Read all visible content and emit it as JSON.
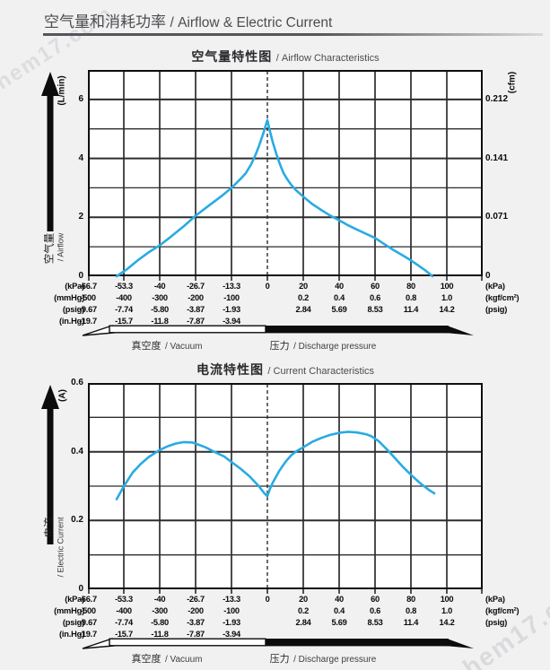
{
  "page": {
    "header": {
      "title_zh": "空气量和消耗功率",
      "title_en": "/ Airflow & Electric Current"
    },
    "watermark": "chem17.com"
  },
  "colors": {
    "background": "#f1f1f2",
    "plot_background": "#ffffff",
    "grid": "#2d2d2f",
    "border": "#0f0f10",
    "curve": "#29abe2",
    "arrow": "#0c0c0c"
  },
  "x_axis_shared": {
    "divisions_kpa": [
      -66.7,
      -53.3,
      -40,
      -26.7,
      -13.3,
      0,
      20,
      40,
      60,
      80,
      100
    ],
    "rows": [
      {
        "unit_left": "(kPa)",
        "unit_right": "(kPa)",
        "cells": [
          "-66.7",
          "-53.3",
          "-40",
          "-26.7",
          "-13.3",
          "0",
          "20",
          "40",
          "60",
          "80",
          "100"
        ]
      },
      {
        "unit_left": "(mmHg)",
        "unit_right": "(kgf/cm²)",
        "cells": [
          "-500",
          "-400",
          "-300",
          "-200",
          "-100",
          null,
          "0.2",
          "0.4",
          "0.6",
          "0.8",
          "1.0"
        ]
      },
      {
        "unit_left": "(psig)",
        "unit_right": "(psig)",
        "cells": [
          "-9.67",
          "-7.74",
          "-5.80",
          "-3.87",
          "-1.93",
          null,
          "2.84",
          "5.69",
          "8.53",
          "11.4",
          "14.2"
        ]
      },
      {
        "unit_left": "(in.Hg)",
        "unit_right": null,
        "cells": [
          "-19.7",
          "-15.7",
          "-11.8",
          "-7.87",
          "-3.94",
          null,
          null,
          null,
          null,
          null,
          null
        ]
      }
    ],
    "range_bar": {
      "vacuum_zh": "真空度",
      "vacuum_en": "/ Vacuum",
      "pressure_zh": "压力",
      "pressure_en": "/ Discharge pressure"
    }
  },
  "chart_data": [
    {
      "type": "line",
      "title_zh": "空气量特性图",
      "title_en": "/ Airflow Characteristics",
      "x_axis": {
        "unit": "kPa",
        "plot_range_kpa": [
          -66.7,
          120
        ],
        "scale": "dual-linear: 13.33 kPa per division on vacuum side, 20 kPa per division on pressure side",
        "zero_line": "dashed",
        "grid": "on"
      },
      "y_left": {
        "name_zh": "空气量",
        "name_en": "/ Airflow",
        "unit": "(L/min)",
        "ylim": [
          0,
          7
        ],
        "minor_step": 1,
        "ticks": [
          {
            "v": 0,
            "label": "0"
          },
          {
            "v": 2,
            "label": "2"
          },
          {
            "v": 4,
            "label": "4"
          },
          {
            "v": 6,
            "label": "6"
          }
        ]
      },
      "y_right": {
        "unit": "(cfm)",
        "ticks": [
          {
            "v": 0,
            "label": "0"
          },
          {
            "v": 2,
            "label": "0.071"
          },
          {
            "v": 4,
            "label": "0.141"
          },
          {
            "v": 6,
            "label": "0.212"
          }
        ]
      },
      "series": [
        {
          "name": "airflow",
          "x_unit": "kPa",
          "y_unit": "L/min",
          "points": [
            [
              -56,
              0
            ],
            [
              -52,
              0.25
            ],
            [
              -48,
              0.55
            ],
            [
              -44,
              0.82
            ],
            [
              -40,
              1.05
            ],
            [
              -36,
              1.33
            ],
            [
              -31,
              1.7
            ],
            [
              -26.7,
              2.05
            ],
            [
              -22,
              2.38
            ],
            [
              -17,
              2.72
            ],
            [
              -13.3,
              3.0
            ],
            [
              -10,
              3.3
            ],
            [
              -8,
              3.5
            ],
            [
              -6,
              3.8
            ],
            [
              -4.5,
              4.1
            ],
            [
              -3,
              4.45
            ],
            [
              -1.5,
              4.85
            ],
            [
              0,
              5.3
            ],
            [
              1.5,
              4.9
            ],
            [
              3,
              4.55
            ],
            [
              5,
              4.15
            ],
            [
              7,
              3.8
            ],
            [
              9,
              3.5
            ],
            [
              11,
              3.3
            ],
            [
              13.3,
              3.1
            ],
            [
              16,
              2.92
            ],
            [
              20,
              2.7
            ],
            [
              25,
              2.45
            ],
            [
              30,
              2.25
            ],
            [
              35,
              2.06
            ],
            [
              40,
              1.9
            ],
            [
              45,
              1.73
            ],
            [
              50,
              1.58
            ],
            [
              55,
              1.44
            ],
            [
              60,
              1.3
            ],
            [
              65,
              1.1
            ],
            [
              70,
              0.9
            ],
            [
              75,
              0.72
            ],
            [
              80,
              0.54
            ],
            [
              84,
              0.37
            ],
            [
              88,
              0.2
            ],
            [
              92,
              0
            ]
          ]
        }
      ]
    },
    {
      "type": "line",
      "title_zh": "电流特性图",
      "title_en": "/ Current Characteristics",
      "x_axis": {
        "unit": "kPa",
        "plot_range_kpa": [
          -66.7,
          120
        ],
        "scale": "dual-linear: 13.33 kPa per division on vacuum side, 20 kPa per division on pressure side",
        "zero_line": "dashed",
        "grid": "on"
      },
      "y_left": {
        "name_zh": "电流",
        "name_en": "/ Electric Current",
        "unit": "(A)",
        "ylim": [
          0,
          0.6
        ],
        "minor_step": 0.1,
        "ticks": [
          {
            "v": 0,
            "label": "0"
          },
          {
            "v": 0.2,
            "label": "0.2"
          },
          {
            "v": 0.4,
            "label": "0.4"
          },
          {
            "v": 0.6,
            "label": "0.6"
          }
        ]
      },
      "series": [
        {
          "name": "electric-current",
          "x_unit": "kPa",
          "y_unit": "A",
          "points": [
            [
              -56,
              0.262
            ],
            [
              -53.3,
              0.3
            ],
            [
              -50,
              0.34
            ],
            [
              -47,
              0.365
            ],
            [
              -44,
              0.385
            ],
            [
              -40,
              0.405
            ],
            [
              -37,
              0.416
            ],
            [
              -34,
              0.424
            ],
            [
              -31,
              0.428
            ],
            [
              -28,
              0.427
            ],
            [
              -26.7,
              0.424
            ],
            [
              -23,
              0.413
            ],
            [
              -20,
              0.401
            ],
            [
              -16,
              0.386
            ],
            [
              -13.3,
              0.37
            ],
            [
              -10,
              0.351
            ],
            [
              -6.7,
              0.329
            ],
            [
              -3.3,
              0.301
            ],
            [
              -1,
              0.278
            ],
            [
              0,
              0.271
            ],
            [
              1.5,
              0.293
            ],
            [
              3.3,
              0.313
            ],
            [
              6.7,
              0.345
            ],
            [
              10,
              0.37
            ],
            [
              13.3,
              0.39
            ],
            [
              16,
              0.401
            ],
            [
              20,
              0.413
            ],
            [
              25,
              0.429
            ],
            [
              30,
              0.44
            ],
            [
              35,
              0.449
            ],
            [
              40,
              0.455
            ],
            [
              45,
              0.458
            ],
            [
              50,
              0.456
            ],
            [
              55,
              0.451
            ],
            [
              58,
              0.445
            ],
            [
              62,
              0.431
            ],
            [
              66,
              0.41
            ],
            [
              70,
              0.388
            ],
            [
              75,
              0.359
            ],
            [
              80,
              0.333
            ],
            [
              85,
              0.309
            ],
            [
              90,
              0.289
            ],
            [
              93,
              0.279
            ]
          ]
        }
      ]
    }
  ]
}
